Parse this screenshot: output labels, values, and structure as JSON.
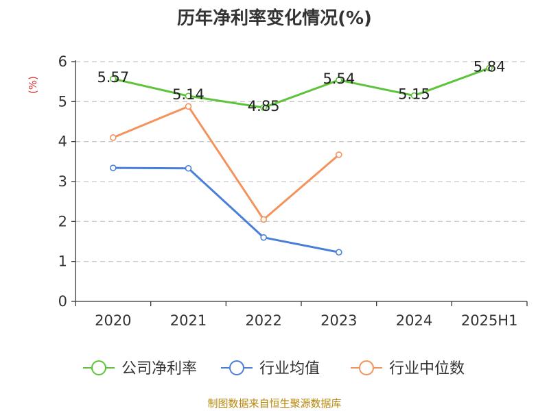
{
  "chart_data": {
    "type": "line",
    "title": "历年净利率变化情况(%)",
    "ylabel": "(%)",
    "xlabel": "",
    "categories": [
      "2020",
      "2021",
      "2022",
      "2023",
      "2024",
      "2025H1"
    ],
    "ylim": [
      0,
      6
    ],
    "yticks": [
      "0",
      "1",
      "2",
      "3",
      "4",
      "5",
      "6"
    ],
    "grid": "horizontal-dashed",
    "legend_position": "bottom",
    "series": [
      {
        "name": "公司净利率",
        "color": "#5cc33a",
        "values": [
          5.57,
          5.14,
          4.85,
          5.54,
          5.15,
          5.84
        ],
        "labels": [
          "5.57",
          "5.14",
          "4.85",
          "5.54",
          "5.15",
          "5.84"
        ]
      },
      {
        "name": "行业均值",
        "color": "#4a7fd9",
        "values": [
          3.34,
          3.33,
          1.6,
          1.23,
          null,
          null
        ]
      },
      {
        "name": "行业中位数",
        "color": "#f4925c",
        "values": [
          4.1,
          4.88,
          2.05,
          3.67,
          null,
          null
        ]
      }
    ]
  },
  "source": "制图数据来自恒生聚源数据库"
}
